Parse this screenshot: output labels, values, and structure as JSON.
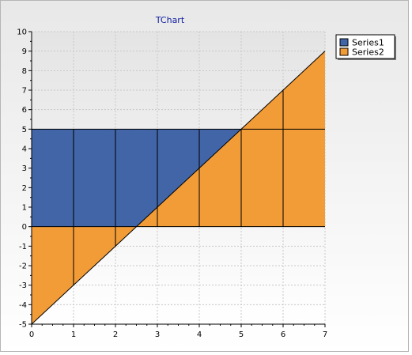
{
  "chart_data": {
    "type": "area",
    "title": "TChart",
    "xlabel": "",
    "ylabel": "",
    "x": [
      0,
      1,
      2,
      3,
      4,
      5,
      6,
      7
    ],
    "xlim": [
      0,
      7
    ],
    "ylim": [
      -5,
      10
    ],
    "x_ticks": [
      0,
      1,
      2,
      3,
      4,
      5,
      6,
      7
    ],
    "y_ticks": [
      -5,
      -4,
      -3,
      -2,
      -1,
      0,
      1,
      2,
      3,
      4,
      5,
      6,
      7,
      8,
      9,
      10
    ],
    "grid": true,
    "legend_position": "top-right",
    "series": [
      {
        "name": "Series1",
        "color": "#4165A6",
        "values": [
          5,
          5,
          5,
          5,
          5,
          5,
          5,
          5
        ]
      },
      {
        "name": "Series2",
        "color": "#F29C38",
        "values": [
          -5,
          -3,
          -1,
          1,
          3,
          5,
          7,
          9
        ]
      }
    ]
  },
  "colors": {
    "title": "#1020A0",
    "background_top": "#E6E6E6",
    "background_bottom": "#FFFFFF",
    "grid": "#C8C8C8",
    "outline": "#000000"
  }
}
